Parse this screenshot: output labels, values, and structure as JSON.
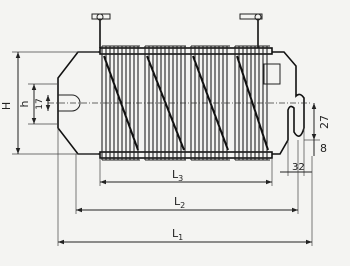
{
  "dimensions": {
    "H": "H",
    "h": "h",
    "d17": "17",
    "d27": "27",
    "d8": "8",
    "d32": "32",
    "L3": {
      "main": "L",
      "sub": "3"
    },
    "L2": {
      "main": "L",
      "sub": "2"
    },
    "L1": {
      "main": "L",
      "sub": "1"
    }
  }
}
